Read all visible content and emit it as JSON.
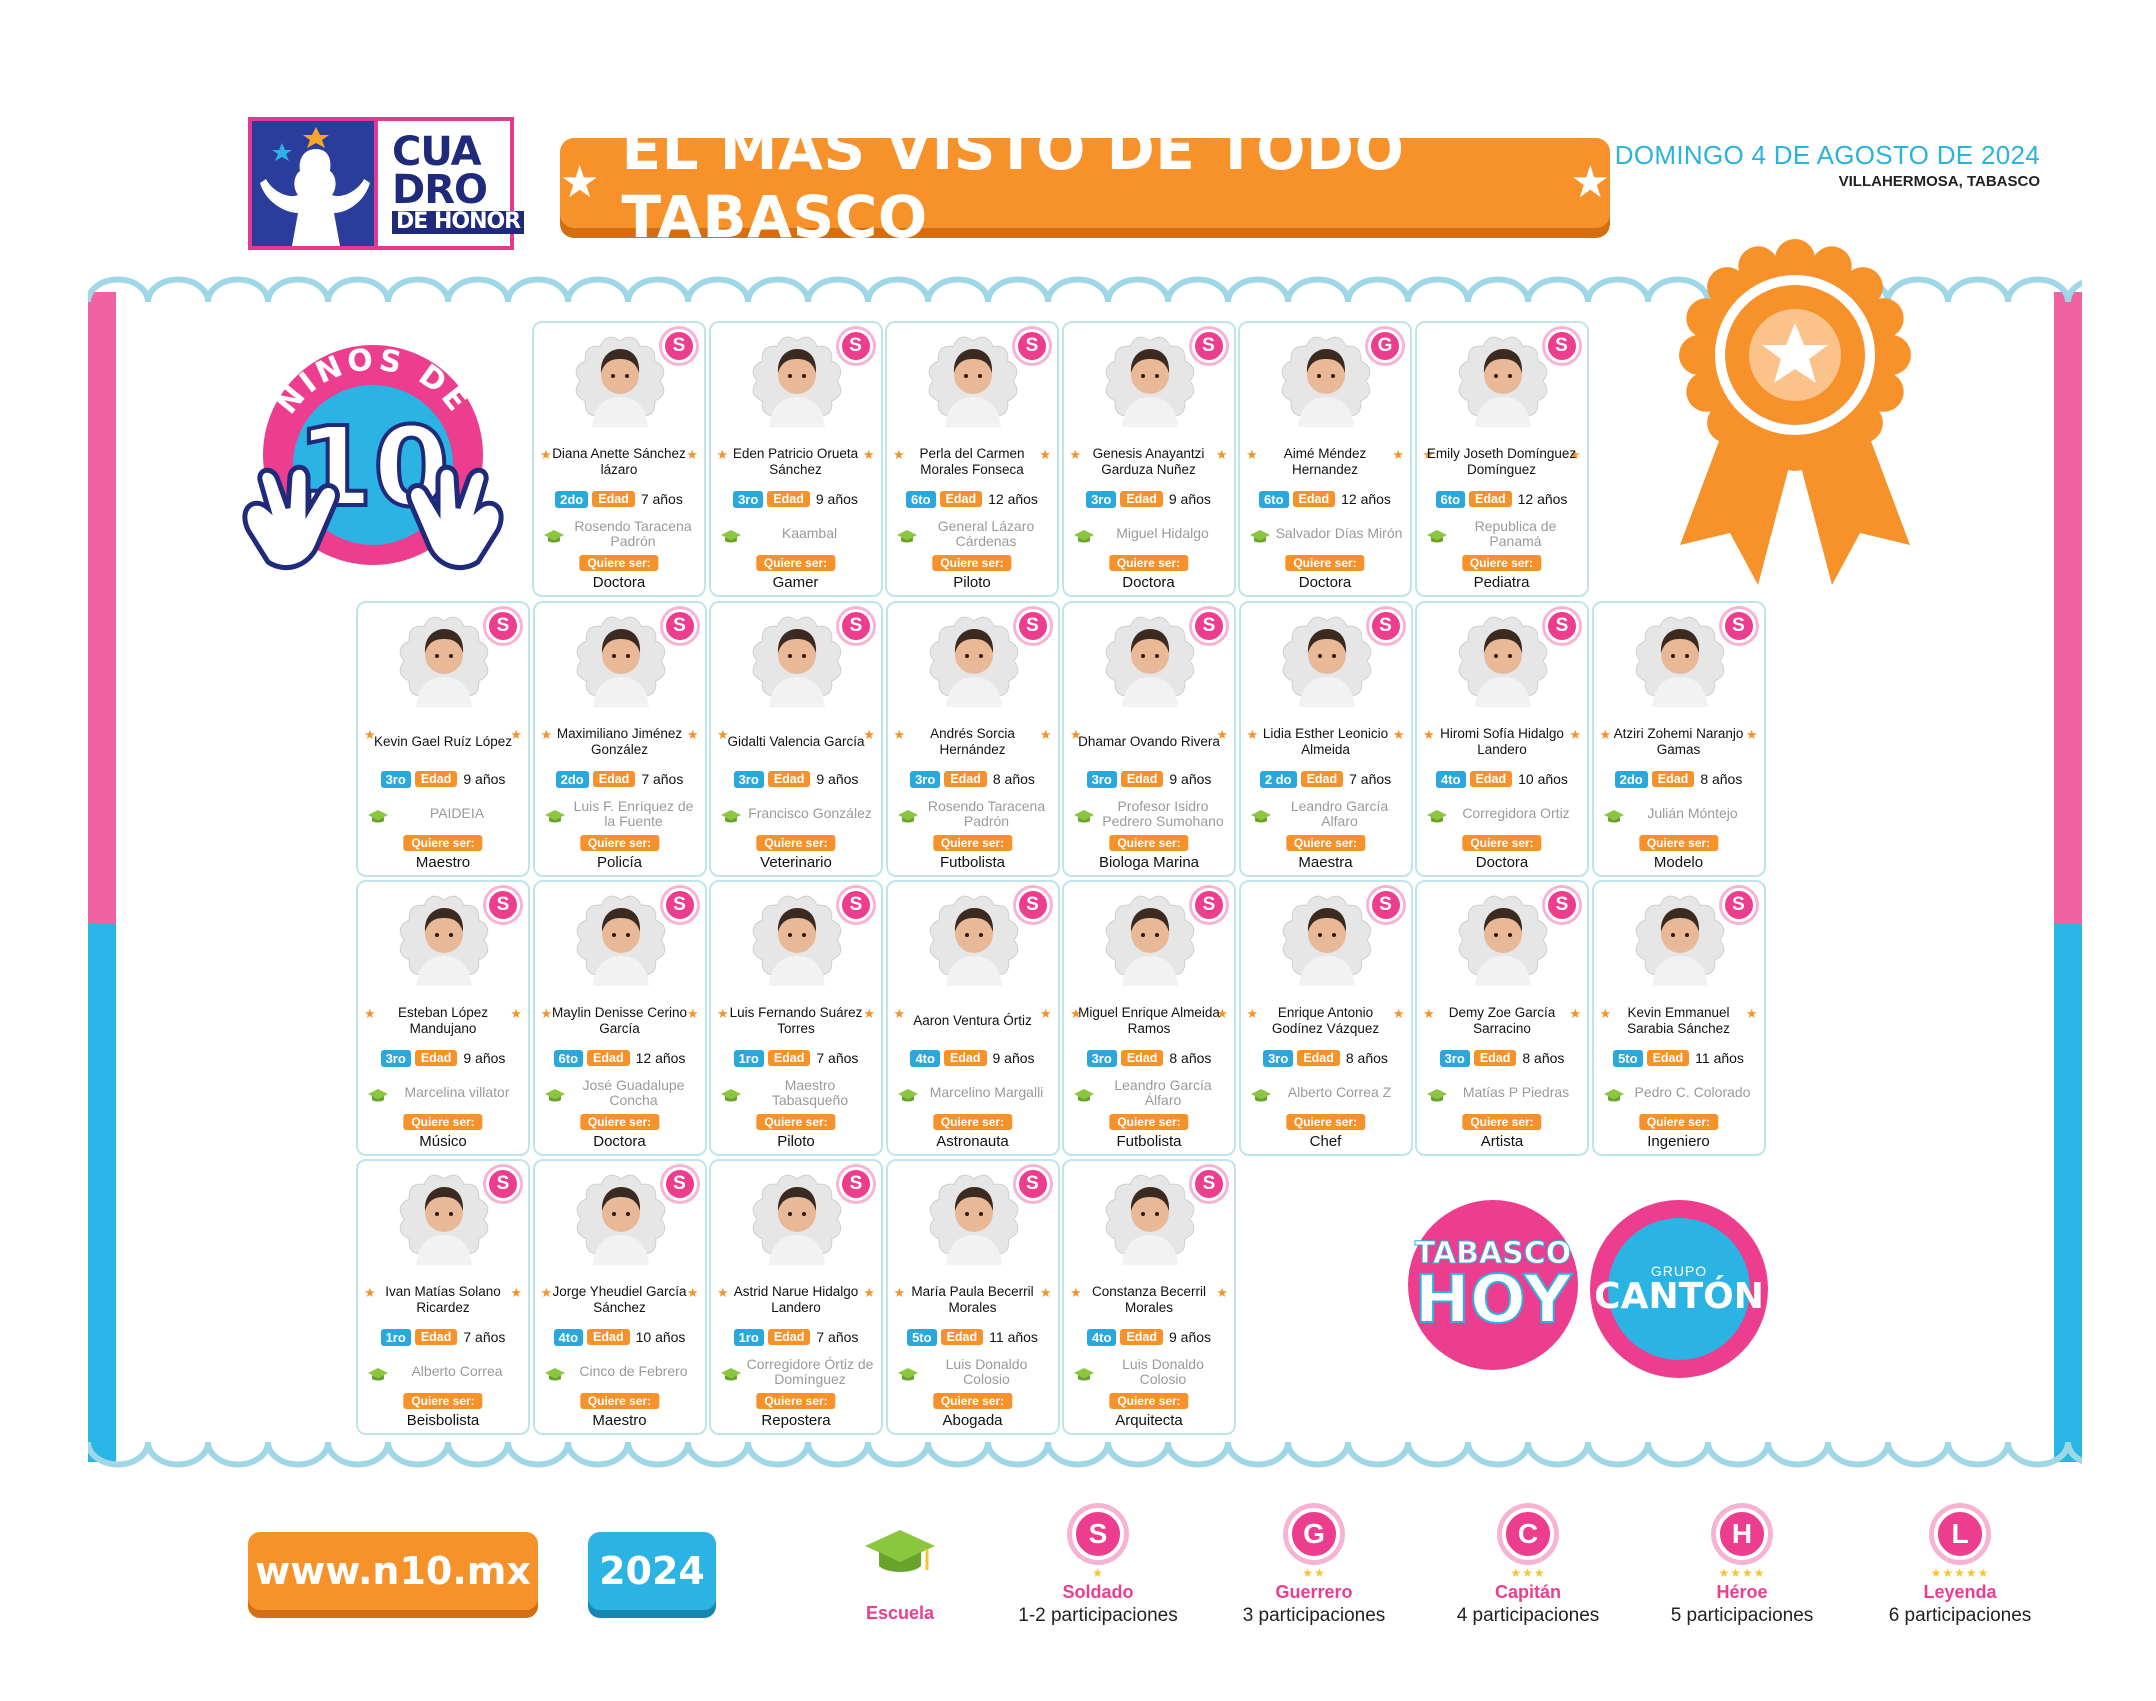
{
  "header": {
    "logo": {
      "line1": "CUA",
      "line2": "DRO",
      "line3": "DE HONOR"
    },
    "banner_title": "EL MÁS VISTO DE TODO TABASCO",
    "date": "DOMINGO 4 DE AGOSTO DE 2024",
    "place": "VILLAHERMOSA, TABASCO"
  },
  "mascot": {
    "top_text": "NIÑOS DE",
    "number": "10"
  },
  "card_labels": {
    "edad": "Edad",
    "quiere": "Quiere ser:"
  },
  "cards": [
    {
      "name": "Diana Anette Sánchez lázaro",
      "grade": "2do",
      "age": "7 años",
      "school": "Rosendo Taracena Padrón",
      "profession": "Doctora",
      "badge": "S"
    },
    {
      "name": "Eden Patricio Orueta Sánchez",
      "grade": "3ro",
      "age": "9 años",
      "school": "Kaambal",
      "profession": "Gamer",
      "badge": "S"
    },
    {
      "name": "Perla del Carmen Morales Fonseca",
      "grade": "6to",
      "age": "12 años",
      "school": "General Lázaro Cárdenas",
      "profession": "Piloto",
      "badge": "S"
    },
    {
      "name": "Genesis Anayantzi Garduza Nuñez",
      "grade": "3ro",
      "age": "9 años",
      "school": "Miguel Hidalgo",
      "profession": "Doctora",
      "badge": "S"
    },
    {
      "name": "Aimé Méndez Hernandez",
      "grade": "6to",
      "age": "12 años",
      "school": "Salvador Días Mirón",
      "profession": "Doctora",
      "badge": "G"
    },
    {
      "name": "Emily Joseth Domínguez Domínguez",
      "grade": "6to",
      "age": "12 años",
      "school": "Republica de Panamá",
      "profession": "Pediatra",
      "badge": "S"
    },
    {
      "name": "Kevin Gael Ruíz López",
      "grade": "3ro",
      "age": "9 años",
      "school": "PAIDEIA",
      "profession": "Maestro",
      "badge": "S"
    },
    {
      "name": "Maximiliano Jiménez González",
      "grade": "2do",
      "age": "7 años",
      "school": "Luis F. Enríquez de la Fuente",
      "profession": "Policía",
      "badge": "S"
    },
    {
      "name": "Gidalti Valencia García",
      "grade": "3ro",
      "age": "9 años",
      "school": "Francisco González",
      "profession": "Veterinario",
      "badge": "S"
    },
    {
      "name": "Andrés Sorcia Hernández",
      "grade": "3ro",
      "age": "8 años",
      "school": "Rosendo Taracena Padrón",
      "profession": "Futbolista",
      "badge": "S"
    },
    {
      "name": "Dhamar Ovando Rivera",
      "grade": "3ro",
      "age": "9 años",
      "school": "Profesor Isidro Pedrero Sumohano",
      "profession": "Biologa Marina",
      "badge": "S"
    },
    {
      "name": "Lidia Esther Leonicio Almeida",
      "grade": "2 do",
      "age": "7 años",
      "school": "Leandro García Alfaro",
      "profession": "Maestra",
      "badge": "S"
    },
    {
      "name": "Hiromi Sofía Hidalgo Landero",
      "grade": "4to",
      "age": "10 años",
      "school": "Corregidora Ortiz",
      "profession": "Doctora",
      "badge": "S"
    },
    {
      "name": "Atziri Zohemi Naranjo Gamas",
      "grade": "2do",
      "age": "8 años",
      "school": "Julián Móntejo",
      "profession": "Modelo",
      "badge": "S"
    },
    {
      "name": "Esteban López Mandujano",
      "grade": "3ro",
      "age": "9 años",
      "school": "Marcelina villator",
      "profession": "Músico",
      "badge": "S"
    },
    {
      "name": "Maylin Denisse Cerino García",
      "grade": "6to",
      "age": "12 años",
      "school": "José Guadalupe Concha",
      "profession": "Doctora",
      "badge": "S"
    },
    {
      "name": "Luis Fernando Suárez Torres",
      "grade": "1ro",
      "age": "7 años",
      "school": "Maestro Tabasqueño",
      "profession": "Piloto",
      "badge": "S"
    },
    {
      "name": "Aaron Ventura Órtiz",
      "grade": "4to",
      "age": "9 años",
      "school": "Marcelino Margalli",
      "profession": "Astronauta",
      "badge": "S"
    },
    {
      "name": "Miguel Enrique Almeida Ramos",
      "grade": "3ro",
      "age": "8 años",
      "school": "Leandro García Álfaro",
      "profession": "Futbolista",
      "badge": "S"
    },
    {
      "name": "Enrique Antonio Godínez Vázquez",
      "grade": "3ro",
      "age": "8 años",
      "school": "Alberto Correa Z",
      "profession": "Chef",
      "badge": "S"
    },
    {
      "name": "Demy Zoe García Sarracino",
      "grade": "3ro",
      "age": "8 años",
      "school": "Matías P Piedras",
      "profession": "Artista",
      "badge": "S"
    },
    {
      "name": "Kevin Emmanuel Sarabia Sánchez",
      "grade": "5to",
      "age": "11 años",
      "school": "Pedro C. Colorado",
      "profession": "Ingeniero",
      "badge": "S"
    },
    {
      "name": "Ivan Matías Solano Ricardez",
      "grade": "1ro",
      "age": "7 años",
      "school": "Alberto Correa",
      "profession": "Beisbolista",
      "badge": "S"
    },
    {
      "name": "Jorge Yheudiel García Sánchez",
      "grade": "4to",
      "age": "10 años",
      "school": "Cinco de Febrero",
      "profession": "Maestro",
      "badge": "S"
    },
    {
      "name": "Astrid Narue Hidalgo Landero",
      "grade": "1ro",
      "age": "7 años",
      "school": "Corregidore Órtiz de Domínguez",
      "profession": "Repostera",
      "badge": "S"
    },
    {
      "name": "María Paula Becerril Morales",
      "grade": "5to",
      "age": "11 años",
      "school": "Luis Donaldo Colosio",
      "profession": "Abogada",
      "badge": "S"
    },
    {
      "name": "Constanza Becerril Morales",
      "grade": "4to",
      "age": "9 años",
      "school": "Luis Donaldo Colosio",
      "profession": "Arquitecta",
      "badge": "S"
    }
  ],
  "brands": {
    "tabasco_line1": "TABASCO",
    "tabasco_line2": "HOY",
    "canton_line1": "GRUPO",
    "canton_line2": "CANTÓN"
  },
  "footer": {
    "website": "www.n10.mx",
    "year": "2024",
    "escuela_label": "Escuela",
    "legend": [
      {
        "letter": "S",
        "name": "Soldado",
        "desc": "1-2 participaciones",
        "stars": 1
      },
      {
        "letter": "G",
        "name": "Guerrero",
        "desc": "3 participaciones",
        "stars": 2
      },
      {
        "letter": "C",
        "name": "Capitán",
        "desc": "4 participaciones",
        "stars": 3
      },
      {
        "letter": "H",
        "name": "Héroe",
        "desc": "5 participaciones",
        "stars": 4
      },
      {
        "letter": "L",
        "name": "Leyenda",
        "desc": "6 participaciones",
        "stars": 5
      }
    ],
    "colors": {
      "pink": "#ed3d8e",
      "orange": "#f7922b",
      "blue": "#2bb3e3",
      "navy": "#1f2a7a"
    }
  }
}
